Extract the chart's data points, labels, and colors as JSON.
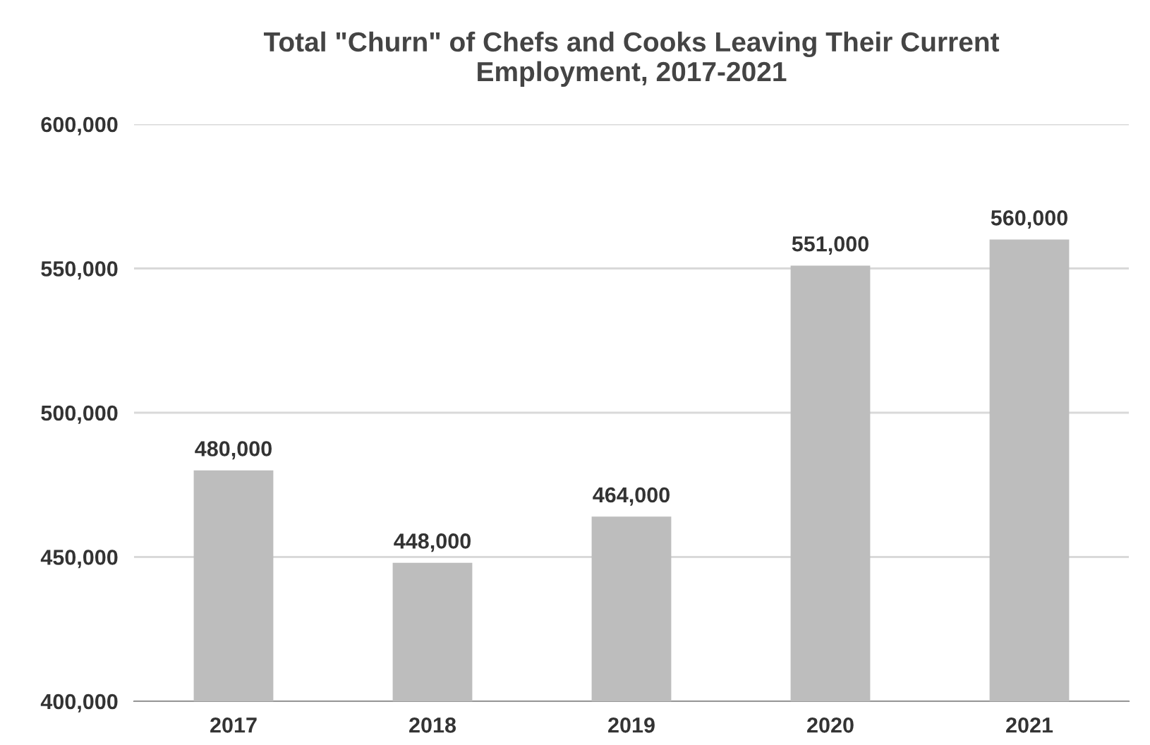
{
  "chart_data": {
    "type": "bar",
    "title": "Total \"Churn\" of Chefs and Cooks Leaving Their Current\nEmployment, 2017-2021",
    "categories": [
      "2017",
      "2018",
      "2019",
      "2020",
      "2021"
    ],
    "values": [
      480000,
      448000,
      464000,
      551000,
      560000
    ],
    "color": "#bdbdbd",
    "ylim": [
      400000,
      600000
    ],
    "yticks": [
      {
        "value": 400000,
        "label": "400,000"
      },
      {
        "value": 450000,
        "label": "450,000"
      },
      {
        "value": 500000,
        "label": "500,000"
      },
      {
        "value": 550000,
        "label": "550,000"
      },
      {
        "value": 600000,
        "label": "600,000"
      }
    ],
    "value_labels": [
      "480,000",
      "448,000",
      "464,000",
      "551,000",
      "560,000"
    ],
    "grid": "y",
    "legend": false
  }
}
